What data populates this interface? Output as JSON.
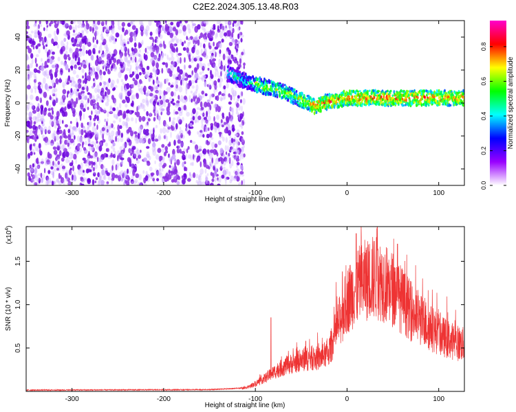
{
  "title": "C2E2.2024.305.13.48.R03",
  "chart_data": [
    {
      "type": "heatmap",
      "title": "C2E2.2024.305.13.48.R03",
      "xlabel": "Height of straight line (km)",
      "ylabel": "Frequency (Hz)",
      "xlim": [
        -350,
        128
      ],
      "ylim": [
        -50,
        50
      ],
      "x_ticks": [
        -300,
        -200,
        -100,
        0,
        100
      ],
      "y_ticks": [
        -40,
        -20,
        0,
        20,
        40
      ],
      "noise_region_x": [
        -350,
        -115
      ],
      "signal_ridge": [
        {
          "x": -130,
          "y": 18
        },
        {
          "x": -110,
          "y": 13
        },
        {
          "x": -90,
          "y": 10
        },
        {
          "x": -70,
          "y": 7
        },
        {
          "x": -50,
          "y": 2
        },
        {
          "x": -35,
          "y": -2
        },
        {
          "x": -20,
          "y": 1
        },
        {
          "x": 0,
          "y": 3
        },
        {
          "x": 25,
          "y": 3
        },
        {
          "x": 50,
          "y": 3
        },
        {
          "x": 75,
          "y": 3
        },
        {
          "x": 100,
          "y": 3
        },
        {
          "x": 128,
          "y": 3
        }
      ],
      "colorbar": {
        "label": "Normalized spectral amplitude",
        "range": [
          0.0,
          0.95
        ],
        "ticks": [
          "0.0",
          "0.2",
          "0.4",
          "0.6",
          "0.8"
        ],
        "colors": [
          "#ffffff",
          "#9900ff",
          "#0000ff",
          "#00ffff",
          "#00ff00",
          "#ffff00",
          "#ff0000",
          "#ff00cc"
        ]
      }
    },
    {
      "type": "line",
      "xlabel": "Height of straight line (km)",
      "ylabel": "SNR (10 * v/v)",
      "y_multiplier": "(x10",
      "y_multiplier_exp": "4",
      "xlim": [
        -350,
        128
      ],
      "ylim": [
        0,
        19000
      ],
      "x_ticks": [
        -300,
        -200,
        -100,
        0,
        100
      ],
      "y_ticks": [
        5000,
        10000,
        15000
      ],
      "y_tick_labels": [
        "0.5",
        "1.0",
        "1.5"
      ],
      "color": "#ee3333",
      "envelope": [
        {
          "x": -350,
          "y": 150
        },
        {
          "x": -150,
          "y": 200
        },
        {
          "x": -110,
          "y": 400
        },
        {
          "x": -100,
          "y": 900
        },
        {
          "x": -90,
          "y": 1500
        },
        {
          "x": -80,
          "y": 2200
        },
        {
          "x": -70,
          "y": 2800
        },
        {
          "x": -60,
          "y": 3200
        },
        {
          "x": -50,
          "y": 3600
        },
        {
          "x": -40,
          "y": 3800
        },
        {
          "x": -30,
          "y": 3800
        },
        {
          "x": -20,
          "y": 4500
        },
        {
          "x": -10,
          "y": 7500
        },
        {
          "x": 0,
          "y": 10500
        },
        {
          "x": 10,
          "y": 12000
        },
        {
          "x": 20,
          "y": 12800
        },
        {
          "x": 30,
          "y": 13200
        },
        {
          "x": 40,
          "y": 12600
        },
        {
          "x": 50,
          "y": 11800
        },
        {
          "x": 60,
          "y": 10500
        },
        {
          "x": 70,
          "y": 9200
        },
        {
          "x": 80,
          "y": 8200
        },
        {
          "x": 90,
          "y": 7400
        },
        {
          "x": 100,
          "y": 6600
        },
        {
          "x": 110,
          "y": 6000
        },
        {
          "x": 120,
          "y": 5600
        },
        {
          "x": 128,
          "y": 5400
        }
      ],
      "peaks": [
        {
          "x": -83,
          "y": 8500
        },
        {
          "x": -45,
          "y": 5800
        },
        {
          "x": -5,
          "y": 13800
        },
        {
          "x": 10,
          "y": 18200
        },
        {
          "x": 33,
          "y": 19000
        },
        {
          "x": 55,
          "y": 17000
        }
      ]
    }
  ]
}
